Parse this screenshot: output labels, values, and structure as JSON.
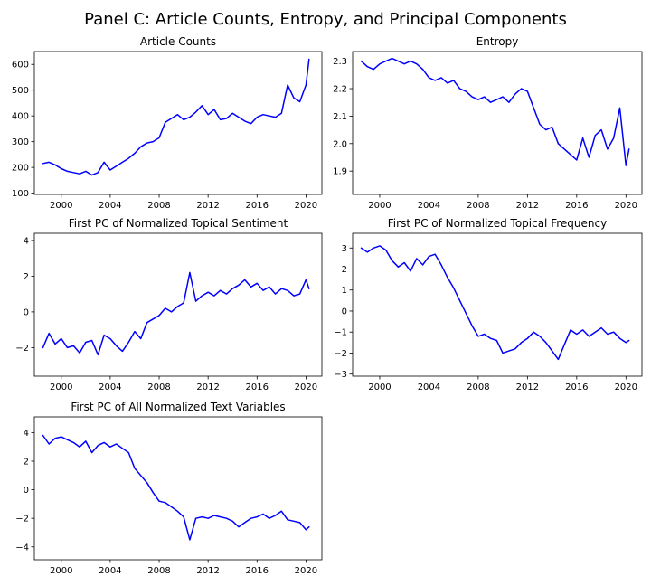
{
  "figure_title": "Panel C: Article Counts, Entropy, and Principal Components",
  "colors": {
    "line": "#0000ff",
    "axes": "#000000",
    "background": "#ffffff"
  },
  "chart_data": [
    {
      "type": "line",
      "title": "Article Counts",
      "xlabel": "",
      "ylabel": "",
      "xlim": [
        1997.8,
        2021.3
      ],
      "ylim": [
        95,
        650
      ],
      "xticks": [
        2000,
        2004,
        2008,
        2012,
        2016,
        2020
      ],
      "yticks": [
        100,
        200,
        300,
        400,
        500,
        600
      ],
      "ytick_labels": [
        "100",
        "200",
        "300",
        "400",
        "500",
        "600"
      ],
      "series": [
        {
          "name": "Article Counts",
          "x": [
            1998.5,
            1999,
            1999.5,
            2000,
            2000.5,
            2001,
            2001.5,
            2002,
            2002.5,
            2003,
            2003.5,
            2004,
            2004.5,
            2005,
            2005.5,
            2006,
            2006.5,
            2007,
            2007.5,
            2008,
            2008.5,
            2009,
            2009.5,
            2010,
            2010.5,
            2011,
            2011.5,
            2012,
            2012.5,
            2013,
            2013.5,
            2014,
            2014.5,
            2015,
            2015.5,
            2016,
            2016.5,
            2017,
            2017.5,
            2018,
            2018.5,
            2019,
            2019.5,
            2020,
            2020.25
          ],
          "values": [
            215,
            220,
            210,
            195,
            185,
            180,
            175,
            185,
            170,
            180,
            220,
            190,
            205,
            220,
            235,
            255,
            280,
            295,
            300,
            315,
            375,
            390,
            405,
            385,
            395,
            415,
            440,
            405,
            425,
            385,
            390,
            410,
            395,
            380,
            370,
            395,
            405,
            400,
            395,
            410,
            520,
            470,
            455,
            520,
            620
          ]
        }
      ]
    },
    {
      "type": "line",
      "title": "Entropy",
      "xlabel": "",
      "ylabel": "",
      "xlim": [
        1997.8,
        2021.3
      ],
      "ylim": [
        1.815,
        2.335
      ],
      "xticks": [
        2000,
        2004,
        2008,
        2012,
        2016,
        2020
      ],
      "yticks": [
        1.9,
        2.0,
        2.1,
        2.2,
        2.3
      ],
      "ytick_labels": [
        "1.9",
        "2.0",
        "2.1",
        "2.2",
        "2.3"
      ],
      "series": [
        {
          "name": "Entropy",
          "x": [
            1998.5,
            1999,
            1999.5,
            2000,
            2000.5,
            2001,
            2001.5,
            2002,
            2002.5,
            2003,
            2003.5,
            2004,
            2004.5,
            2005,
            2005.5,
            2006,
            2006.5,
            2007,
            2007.5,
            2008,
            2008.5,
            2009,
            2009.5,
            2010,
            2010.5,
            2011,
            2011.5,
            2012,
            2012.5,
            2013,
            2013.5,
            2014,
            2014.5,
            2015,
            2015.5,
            2016,
            2016.5,
            2017,
            2017.5,
            2018,
            2018.5,
            2019,
            2019.5,
            2020,
            2020.25
          ],
          "values": [
            2.3,
            2.28,
            2.27,
            2.29,
            2.3,
            2.31,
            2.3,
            2.29,
            2.3,
            2.29,
            2.27,
            2.24,
            2.23,
            2.24,
            2.22,
            2.23,
            2.2,
            2.19,
            2.17,
            2.16,
            2.17,
            2.15,
            2.16,
            2.17,
            2.15,
            2.18,
            2.2,
            2.19,
            2.13,
            2.07,
            2.05,
            2.06,
            2.0,
            1.98,
            1.96,
            1.94,
            2.02,
            1.95,
            2.03,
            2.05,
            1.98,
            2.02,
            2.13,
            1.92,
            1.98
          ]
        }
      ]
    },
    {
      "type": "line",
      "title": "First PC of Normalized Topical Sentiment",
      "xlabel": "",
      "ylabel": "",
      "xlim": [
        1997.8,
        2021.3
      ],
      "ylim": [
        -3.6,
        4.4
      ],
      "xticks": [
        2000,
        2004,
        2008,
        2012,
        2016,
        2020
      ],
      "yticks": [
        -2,
        0,
        2,
        4
      ],
      "ytick_labels": [
        "−2",
        "0",
        "2",
        "4"
      ],
      "series": [
        {
          "name": "First PC of Normalized Topical Sentiment",
          "x": [
            1998.5,
            1999,
            1999.5,
            2000,
            2000.5,
            2001,
            2001.5,
            2002,
            2002.5,
            2003,
            2003.5,
            2004,
            2004.5,
            2005,
            2005.5,
            2006,
            2006.5,
            2007,
            2007.5,
            2008,
            2008.5,
            2009,
            2009.5,
            2010,
            2010.5,
            2011,
            2011.5,
            2012,
            2012.5,
            2013,
            2013.5,
            2014,
            2014.5,
            2015,
            2015.5,
            2016,
            2016.5,
            2017,
            2017.5,
            2018,
            2018.5,
            2019,
            2019.5,
            2020,
            2020.25
          ],
          "values": [
            -2.0,
            -1.2,
            -1.8,
            -1.5,
            -2.0,
            -1.9,
            -2.3,
            -1.7,
            -1.6,
            -2.4,
            -1.3,
            -1.5,
            -1.9,
            -2.2,
            -1.7,
            -1.1,
            -1.5,
            -0.6,
            -0.4,
            -0.2,
            0.2,
            0.0,
            0.3,
            0.5,
            2.2,
            0.6,
            0.9,
            1.1,
            0.9,
            1.2,
            1.0,
            1.3,
            1.5,
            1.8,
            1.4,
            1.6,
            1.2,
            1.4,
            1.0,
            1.3,
            1.2,
            0.9,
            1.0,
            1.8,
            1.3
          ]
        }
      ]
    },
    {
      "type": "line",
      "title": "First PC of Normalized Topical Frequency",
      "xlabel": "",
      "ylabel": "",
      "xlim": [
        1997.8,
        2021.3
      ],
      "ylim": [
        -3.1,
        3.7
      ],
      "xticks": [
        2000,
        2004,
        2008,
        2012,
        2016,
        2020
      ],
      "yticks": [
        -3,
        -2,
        -1,
        0,
        1,
        2,
        3
      ],
      "ytick_labels": [
        "−3",
        "−2",
        "−1",
        "0",
        "1",
        "2",
        "3"
      ],
      "series": [
        {
          "name": "First PC of Normalized Topical Frequency",
          "x": [
            1998.5,
            1999,
            1999.5,
            2000,
            2000.5,
            2001,
            2001.5,
            2002,
            2002.5,
            2003,
            2003.5,
            2004,
            2004.5,
            2005,
            2005.5,
            2006,
            2006.5,
            2007,
            2007.5,
            2008,
            2008.5,
            2009,
            2009.5,
            2010,
            2010.5,
            2011,
            2011.5,
            2012,
            2012.5,
            2013,
            2013.5,
            2014,
            2014.5,
            2015,
            2015.5,
            2016,
            2016.5,
            2017,
            2017.5,
            2018,
            2018.5,
            2019,
            2019.5,
            2020,
            2020.25
          ],
          "values": [
            3.0,
            2.8,
            3.0,
            3.1,
            2.9,
            2.4,
            2.1,
            2.3,
            1.9,
            2.5,
            2.2,
            2.6,
            2.7,
            2.2,
            1.6,
            1.1,
            0.5,
            -0.1,
            -0.7,
            -1.2,
            -1.1,
            -1.3,
            -1.4,
            -2.0,
            -1.9,
            -1.8,
            -1.5,
            -1.3,
            -1.0,
            -1.2,
            -1.5,
            -1.9,
            -2.3,
            -1.6,
            -0.9,
            -1.1,
            -0.9,
            -1.2,
            -1.0,
            -0.8,
            -1.1,
            -1.0,
            -1.3,
            -1.5,
            -1.4
          ]
        }
      ]
    },
    {
      "type": "line",
      "title": "First PC of All Normalized Text Variables",
      "xlabel": "",
      "ylabel": "",
      "xlim": [
        1997.8,
        2021.3
      ],
      "ylim": [
        -4.9,
        5.1
      ],
      "xticks": [
        2000,
        2004,
        2008,
        2012,
        2016,
        2020
      ],
      "yticks": [
        -4,
        -2,
        0,
        2,
        4
      ],
      "ytick_labels": [
        "−4",
        "−2",
        "0",
        "2",
        "4"
      ],
      "series": [
        {
          "name": "First PC of All Normalized Text Variables",
          "x": [
            1998.5,
            1999,
            1999.5,
            2000,
            2000.5,
            2001,
            2001.5,
            2002,
            2002.5,
            2003,
            2003.5,
            2004,
            2004.5,
            2005,
            2005.5,
            2006,
            2006.5,
            2007,
            2007.5,
            2008,
            2008.5,
            2009,
            2009.5,
            2010,
            2010.5,
            2011,
            2011.5,
            2012,
            2012.5,
            2013,
            2013.5,
            2014,
            2014.5,
            2015,
            2015.5,
            2016,
            2016.5,
            2017,
            2017.5,
            2018,
            2018.5,
            2019,
            2019.5,
            2020,
            2020.25
          ],
          "values": [
            3.8,
            3.2,
            3.6,
            3.7,
            3.5,
            3.3,
            3.0,
            3.4,
            2.6,
            3.1,
            3.3,
            3.0,
            3.2,
            2.9,
            2.6,
            1.5,
            1.0,
            0.5,
            -0.2,
            -0.8,
            -0.9,
            -1.2,
            -1.5,
            -1.9,
            -3.5,
            -2.0,
            -1.9,
            -2.0,
            -1.8,
            -1.9,
            -2.0,
            -2.2,
            -2.6,
            -2.3,
            -2.0,
            -1.9,
            -1.7,
            -2.0,
            -1.8,
            -1.5,
            -2.1,
            -2.2,
            -2.3,
            -2.8,
            -2.6
          ]
        }
      ]
    }
  ]
}
